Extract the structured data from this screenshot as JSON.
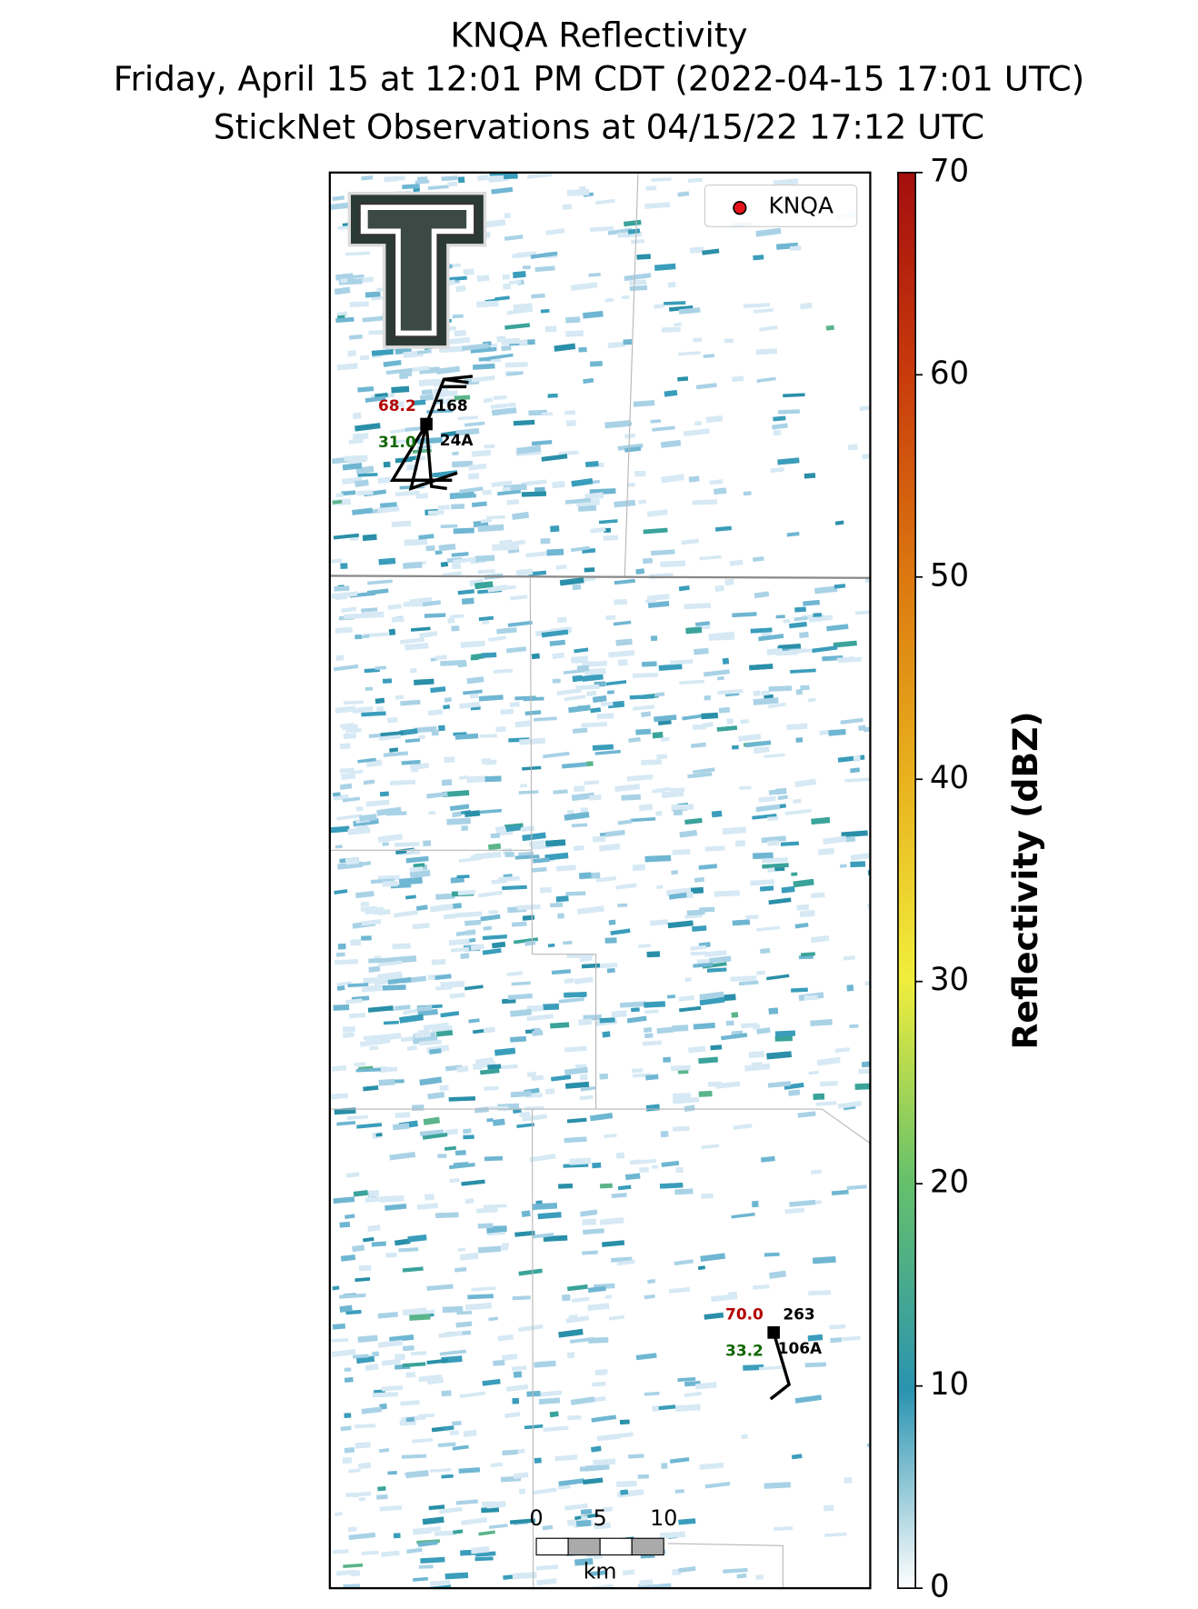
{
  "title": [
    "KNQA Reflectivity",
    "Friday, April 15 at 12:01 PM CDT (2022-04-15 17:01 UTC)",
    "StickNet Observations at 04/15/22 17:12 UTC"
  ],
  "legend": [
    "KNQA"
  ],
  "colorbar": {
    "label": "Reflectivity (dBZ)",
    "lim": [
      0,
      70
    ],
    "ticks": [
      0,
      10,
      20,
      30,
      40,
      50,
      60,
      70
    ]
  },
  "stations": [
    {
      "temperature": "68.2",
      "dewpoint": "31.0",
      "direction": "168",
      "id": "24A"
    },
    {
      "temperature": "70.0",
      "dewpoint": "33.2",
      "direction": "263",
      "id": "106A"
    }
  ],
  "scalebar": {
    "ticks": [
      "0",
      "5",
      "10"
    ],
    "unit": "km"
  }
}
